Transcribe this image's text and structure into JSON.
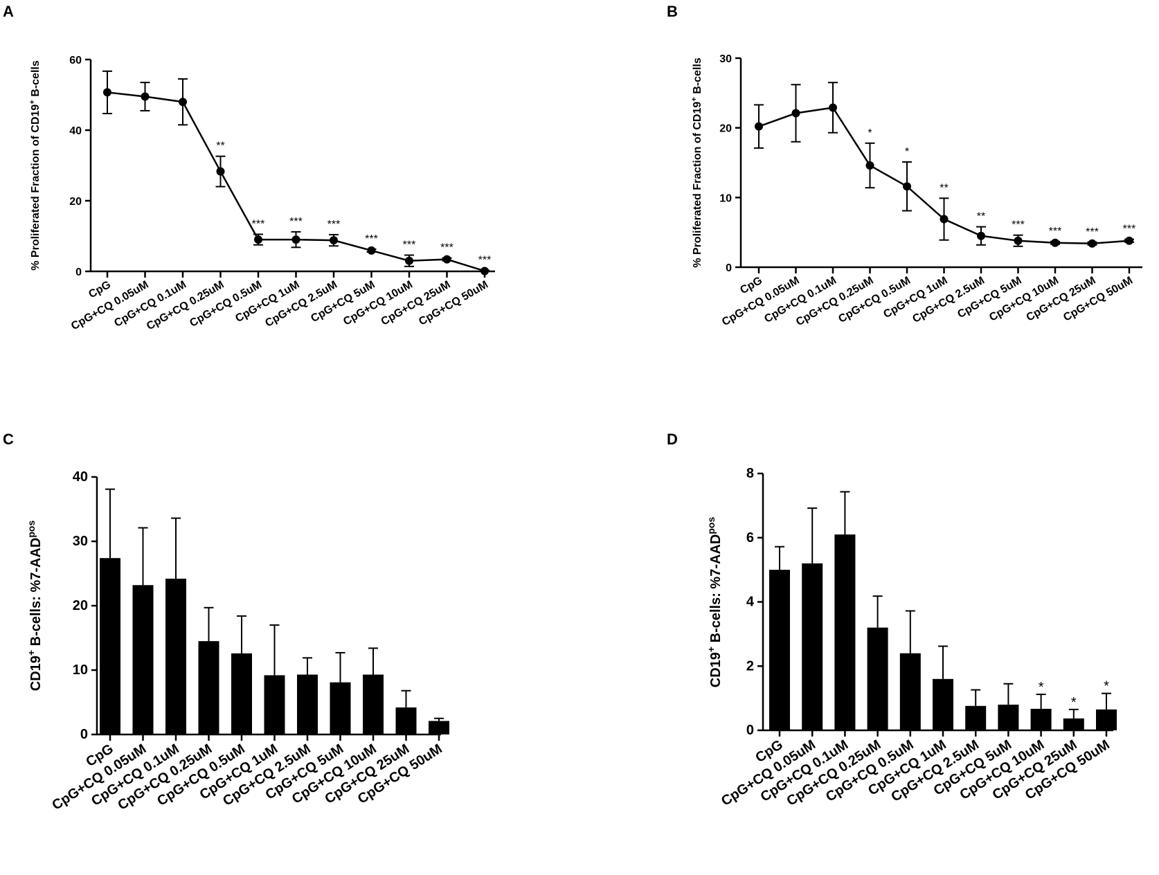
{
  "figure": {
    "panels": [
      "A",
      "B",
      "C",
      "D"
    ],
    "tick_suffix": "",
    "axis_unit_note": ""
  },
  "chart_data": [
    {
      "panel": "A",
      "type": "line",
      "title": "",
      "ylabel_parts": [
        "% Proliferated Fraction of CD19",
        "+",
        " B-cells"
      ],
      "xlabel": "",
      "ylim": [
        0,
        60
      ],
      "yticks": [
        0,
        20,
        40,
        60
      ],
      "categories": [
        "CpG",
        "CpG+CQ 0.05uM",
        "CpG+CQ 0.1uM",
        "CpG+CQ 0.25uM",
        "CpG+CQ 0.5uM",
        "CpG+CQ 1uM",
        "CpG+CQ 2.5uM",
        "CpG+CQ 5uM",
        "CpG+CQ 10uM",
        "CpG+CQ 25uM",
        "CpG+CQ 50uM"
      ],
      "values": [
        50.7,
        49.5,
        48.0,
        28.3,
        9.0,
        9.0,
        8.8,
        5.9,
        3.0,
        3.4,
        0.1
      ],
      "errors": [
        6.0,
        4.0,
        6.5,
        4.3,
        1.5,
        2.2,
        1.6,
        0.4,
        1.6,
        0.4,
        0.2
      ],
      "significance": [
        "",
        "",
        "",
        "**",
        "***",
        "***",
        "***",
        "***",
        "***",
        "***",
        "***"
      ]
    },
    {
      "panel": "B",
      "type": "line",
      "title": "",
      "ylabel_parts": [
        "% Proliferated Fraction of CD19",
        "+",
        " B-cells"
      ],
      "xlabel": "",
      "ylim": [
        0,
        30
      ],
      "yticks": [
        0,
        10,
        20,
        30
      ],
      "categories": [
        "CpG",
        "CpG+CQ 0.05uM",
        "CpG+CQ 0.1uM",
        "CpG+CQ 0.25uM",
        "CpG+CQ 0.5uM",
        "CpG+CQ 1uM",
        "CpG+CQ 2.5uM",
        "CpG+CQ 5uM",
        "CpG+CQ 10uM",
        "CpG+CQ 25uM",
        "CpG+CQ 50uM"
      ],
      "values": [
        20.2,
        22.1,
        22.9,
        14.6,
        11.6,
        6.9,
        4.5,
        3.8,
        3.5,
        3.4,
        3.8
      ],
      "errors": [
        3.1,
        4.1,
        3.6,
        3.2,
        3.5,
        3.0,
        1.3,
        0.8,
        0.2,
        0.2,
        0.2
      ],
      "significance": [
        "",
        "",
        "",
        "*",
        "*",
        "**",
        "**",
        "***",
        "***",
        "***",
        "***"
      ]
    },
    {
      "panel": "C",
      "type": "bar",
      "title": "",
      "ylabel_parts": [
        "CD19",
        "+",
        " B-cells: %7-AAD",
        "pos"
      ],
      "xlabel": "",
      "ylim": [
        0,
        40
      ],
      "yticks": [
        0,
        10,
        20,
        30,
        40
      ],
      "categories": [
        "CpG",
        "CpG+CQ 0.05uM",
        "CpG+CQ 0.1uM",
        "CpG+CQ 0.25uM",
        "CpG+CQ 0.5uM",
        "CpG+CQ 1uM",
        "CpG+CQ 2.5uM",
        "CpG+CQ 5uM",
        "CpG+CQ 10uM",
        "CpG+CQ 25uM",
        "CpG+CQ 50uM"
      ],
      "values": [
        27.4,
        23.2,
        24.2,
        14.5,
        12.6,
        9.2,
        9.3,
        8.1,
        9.3,
        4.2,
        2.1
      ],
      "errors": [
        10.7,
        8.9,
        9.4,
        5.2,
        5.8,
        7.8,
        2.6,
        4.6,
        4.1,
        2.6,
        0.4
      ],
      "significance": [
        "",
        "",
        "",
        "",
        "",
        "",
        "",
        "",
        "",
        "",
        ""
      ]
    },
    {
      "panel": "D",
      "type": "bar",
      "title": "",
      "ylabel_parts": [
        "CD19",
        "+",
        " B-cells: %7-AAD",
        "pos"
      ],
      "xlabel": "",
      "ylim": [
        0,
        8
      ],
      "yticks": [
        0,
        2,
        4,
        6,
        8
      ],
      "categories": [
        "CpG",
        "CpG+CQ 0.05uM",
        "CpG+CQ 0.1uM",
        "CpG+CQ 0.25uM",
        "CpG+CQ 0.5uM",
        "CpG+CQ 1uM",
        "CpG+CQ 2.5uM",
        "CpG+CQ 5uM",
        "CpG+CQ 10uM",
        "CpG+CQ 25uM",
        "CpG+CQ 50uM"
      ],
      "values": [
        5.0,
        5.2,
        6.1,
        3.2,
        2.4,
        1.6,
        0.76,
        0.8,
        0.67,
        0.37,
        0.65
      ],
      "errors": [
        0.72,
        1.72,
        1.33,
        0.98,
        1.32,
        1.02,
        0.5,
        0.65,
        0.45,
        0.28,
        0.5
      ],
      "significance": [
        "",
        "",
        "",
        "",
        "",
        "",
        "",
        "",
        "*",
        "*",
        "*"
      ]
    }
  ]
}
